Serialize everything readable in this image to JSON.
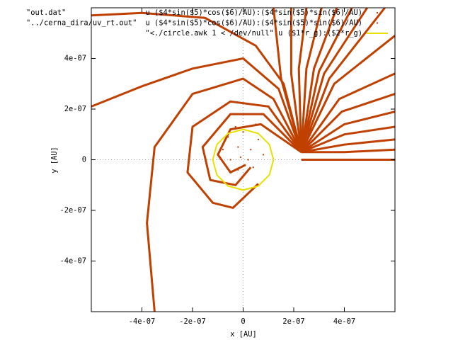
{
  "chart_data": {
    "type": "line",
    "xlabel": "x [AU]",
    "ylabel": "y [AU]",
    "xlim": [
      -6e-07,
      6e-07
    ],
    "ylim": [
      -6e-07,
      6e-07
    ],
    "xticks": [
      {
        "value": -4e-07,
        "label": "-4e-07"
      },
      {
        "value": -2e-07,
        "label": "-2e-07"
      },
      0,
      {
        "value": 2e-07,
        "label": "2e-07"
      },
      {
        "value": 4e-07,
        "label": "4e-07"
      }
    ],
    "yticks": [
      {
        "value": -4e-07,
        "label": "-4e-07"
      },
      {
        "value": -2e-07,
        "label": "-2e-07"
      },
      0,
      {
        "value": 2e-07,
        "label": "2e-07"
      },
      {
        "value": 4e-07,
        "label": "4e-07"
      }
    ],
    "zeroaxis": true,
    "series": [
      {
        "source": "\"out.dat\"",
        "name": "u ($4*sin($5)*cos($6)/AU):($4*sin($5)*sin($6)/AU)",
        "color": "#c04000",
        "style": "lines",
        "curves": [
          {
            "x": [
              2.3e-07,
              6e-07
            ],
            "y": [
              0,
              0
            ]
          },
          {
            "x": [
              2.3e-07,
              4e-07,
              6e-07
            ],
            "y": [
              3e-08,
              3e-08,
              4e-08
            ]
          },
          {
            "x": [
              2.3e-07,
              4e-07,
              6e-07
            ],
            "y": [
              3e-08,
              6e-08,
              8e-08
            ]
          },
          {
            "x": [
              2.3e-07,
              4e-07,
              6e-07
            ],
            "y": [
              3e-08,
              1e-07,
              1.3e-07
            ]
          },
          {
            "x": [
              2.3e-07,
              4e-07,
              6e-07
            ],
            "y": [
              3e-08,
              1.4e-07,
              1.9e-07
            ]
          },
          {
            "x": [
              2.3e-07,
              3.9e-07,
              6e-07
            ],
            "y": [
              3e-08,
              1.9e-07,
              2.6e-07
            ]
          },
          {
            "x": [
              2.3e-07,
              3.8e-07,
              6e-07
            ],
            "y": [
              3e-08,
              2.4e-07,
              3.4e-07
            ]
          },
          {
            "x": [
              2.3e-07,
              3.6e-07,
              6e-07
            ],
            "y": [
              3e-08,
              3e-07,
              4.9e-07
            ]
          },
          {
            "x": [
              2.3e-07,
              3.4e-07,
              5.6e-07
            ],
            "y": [
              3e-08,
              3.2e-07,
              6e-07
            ]
          },
          {
            "x": [
              2.3e-07,
              3.2e-07,
              4.9e-07
            ],
            "y": [
              3e-08,
              3.4e-07,
              6e-07
            ]
          },
          {
            "x": [
              2.3e-07,
              3e-07,
              4.3e-07
            ],
            "y": [
              3e-08,
              3.5e-07,
              6e-07
            ]
          },
          {
            "x": [
              2.3e-07,
              2.8e-07,
              3.7e-07
            ],
            "y": [
              3e-08,
              3.6e-07,
              6e-07
            ]
          },
          {
            "x": [
              2.3e-07,
              2.5e-07,
              3.1e-07
            ],
            "y": [
              3e-08,
              3.6e-07,
              6e-07
            ]
          },
          {
            "x": [
              2.3e-07,
              2.2e-07,
              2.5e-07
            ],
            "y": [
              3e-08,
              3.6e-07,
              6e-07
            ]
          },
          {
            "x": [
              2.3e-07,
              1.9e-07,
              1.9e-07
            ],
            "y": [
              3e-08,
              3.4e-07,
              6e-07
            ]
          },
          {
            "x": [
              2.3e-07,
              1.5e-07,
              1.2e-07
            ],
            "y": [
              3e-08,
              3.2e-07,
              6e-07
            ]
          },
          {
            "x": [
              2.3e-07,
              1.6e-07,
              5e-08,
              -1.5e-07,
              -4e-07,
              -6e-07
            ],
            "y": [
              3e-08,
              3e-07,
              4.5e-07,
              5.6e-07,
              5.8e-07,
              5.7e-07
            ]
          },
          {
            "x": [
              2.3e-07,
              1.4e-07,
              0,
              -2e-07,
              -4e-07,
              -6e-07
            ],
            "y": [
              3e-08,
              2.8e-07,
              4e-07,
              3.6e-07,
              2.9e-07,
              2.1e-07
            ]
          },
          {
            "x": [
              2.3e-07,
              1.2e-07,
              0,
              -2e-07,
              -3.5e-07,
              -3.8e-07,
              -3.5e-07
            ],
            "y": [
              3e-08,
              2.4e-07,
              3.2e-07,
              2.6e-07,
              5e-08,
              -2.5e-07,
              -6e-07
            ]
          },
          {
            "x": [
              2.3e-07,
              1e-07,
              -5e-08,
              -2e-07,
              -2.2e-07,
              -1.2e-07,
              -4e-08,
              6e-08
            ],
            "y": [
              3e-08,
              2.1e-07,
              2.3e-07,
              1.3e-07,
              -5e-08,
              -1.7e-07,
              -1.9e-07,
              -9.5e-08
            ]
          },
          {
            "x": [
              2.3e-07,
              8e-08,
              -5e-08,
              -1.6e-07,
              -1.3e-07,
              -3e-08,
              3e-08
            ],
            "y": [
              3e-08,
              1.8e-07,
              1.8e-07,
              5e-08,
              -8e-08,
              -1e-07,
              -3e-08
            ]
          },
          {
            "x": [
              2.3e-07,
              7e-08,
              -5e-08,
              -1e-07,
              -5e-08,
              1e-08
            ],
            "y": [
              3e-08,
              1.4e-07,
              1.2e-07,
              2e-08,
              -5e-08,
              -2e-08
            ]
          }
        ]
      },
      {
        "source": "\"../cerna_dira/uv_rt.out\"",
        "name": "u ($4*sin($5)*cos($6)/AU):($4*sin($5)*sin($6)/AU)",
        "color": "#c04000",
        "style": "points",
        "x": [
          -8e-08,
          -6e-08,
          0,
          6e-08,
          8e-08,
          4e-08,
          -2e-08,
          -5e-08,
          -2e-08,
          3e-08,
          2e-08,
          -1e-08,
          -3e-08,
          5e-08,
          1e-07
        ],
        "y": [
          4e-08,
          9e-08,
          1.1e-07,
          8e-08,
          2e-08,
          -3e-08,
          -4e-08,
          0,
          5e-08,
          4e-08,
          0,
          1e-08,
          1.3e-07,
          1.4e-07,
          1.2e-07
        ]
      },
      {
        "name": "\"<./circle.awk 1 < /dev/null\" u ($1*r_g):($2*r_g)",
        "color": "#e8e000",
        "style": "lines",
        "x": [
          1.2e-07,
          1.039e-07,
          6e-08,
          0,
          -6e-08,
          -1.039e-07,
          -1.2e-07,
          -1.039e-07,
          -6e-08,
          0,
          6e-08,
          1.039e-07,
          1.2e-07
        ],
        "y": [
          0,
          6e-08,
          1.039e-07,
          1.2e-07,
          1.039e-07,
          6e-08,
          0,
          -6e-08,
          -1.039e-07,
          -1.2e-07,
          -1.039e-07,
          -6e-08,
          0
        ]
      }
    ]
  }
}
